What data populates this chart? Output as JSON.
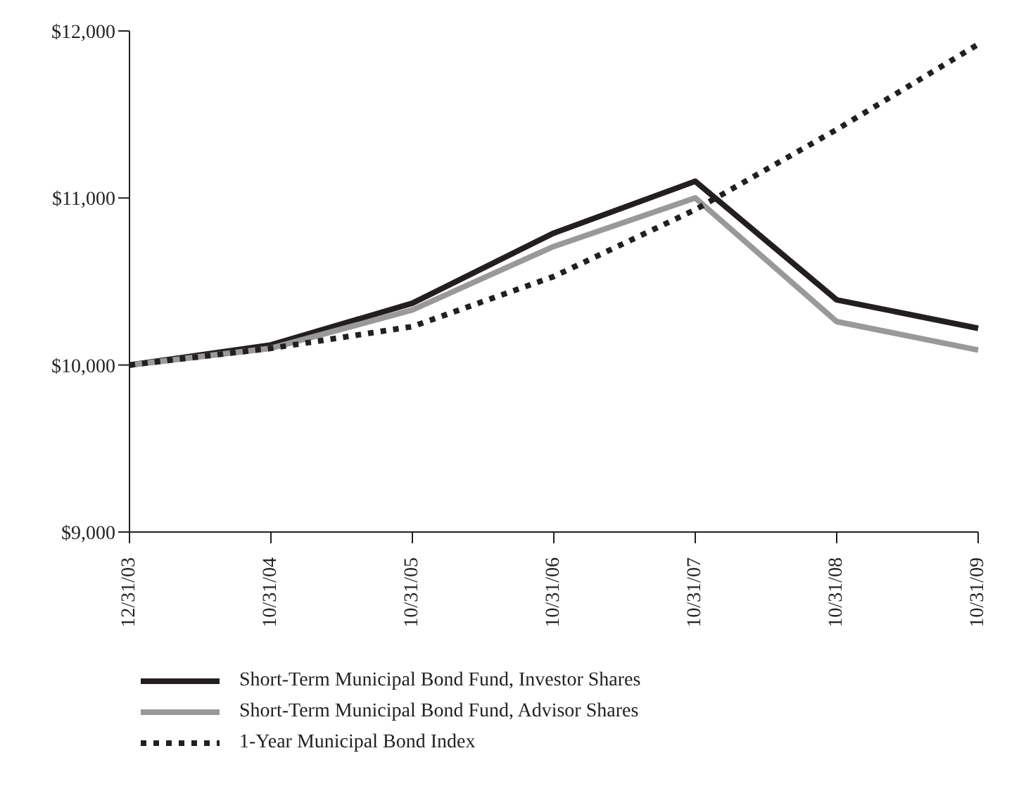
{
  "chart_data": {
    "type": "line",
    "categories": [
      "12/31/03",
      "10/31/04",
      "10/31/05",
      "10/31/06",
      "10/31/07",
      "10/31/08",
      "10/31/09"
    ],
    "series": [
      {
        "name": "Short-Term Municipal Bond Fund, Investor Shares",
        "color": "#231f20",
        "line_style": "solid",
        "values": [
          10000,
          10120,
          10370,
          10790,
          11100,
          10390,
          10220
        ]
      },
      {
        "name": "Short-Term Municipal Bond Fund, Advisor Shares",
        "color": "#999999",
        "line_style": "solid",
        "values": [
          10000,
          10100,
          10330,
          10710,
          11000,
          10260,
          10090
        ]
      },
      {
        "name": "1-Year Municipal Bond Index",
        "color": "#231f20",
        "line_style": "dotted",
        "values": [
          10000,
          10100,
          10230,
          10530,
          10930,
          11410,
          11920
        ]
      }
    ],
    "ylim": [
      9000,
      12000
    ],
    "yticks": [
      {
        "value": 9000,
        "label": "$9,000"
      },
      {
        "value": 10000,
        "label": "$10,000"
      },
      {
        "value": 11000,
        "label": "$11,000"
      },
      {
        "value": 12000,
        "label": "$12,000"
      }
    ],
    "grid": false,
    "legend": "bottom",
    "marker": "none"
  }
}
